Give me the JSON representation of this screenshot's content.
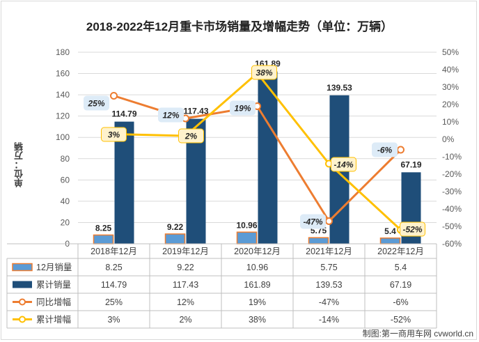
{
  "title": "2018-2022年12月重卡市场销量及增幅走势（单位：万辆）",
  "y_axis_label": "单位：万辆",
  "credit": "制图:第一商用车网 cvworld.cn",
  "chart_data": {
    "type": "bar",
    "categories": [
      "2018年12月",
      "2019年12月",
      "2020年12月",
      "2021年12月",
      "2022年12月"
    ],
    "series": [
      {
        "name": "12月销量",
        "type": "bar",
        "axis": "left",
        "values": [
          8.25,
          9.22,
          10.96,
          5.75,
          5.4
        ],
        "color": "#5b9bd5",
        "border": "#ed7d31"
      },
      {
        "name": "累计销量",
        "type": "bar",
        "axis": "left",
        "values": [
          114.79,
          117.43,
          161.89,
          139.53,
          67.19
        ],
        "color": "#1f4e79"
      },
      {
        "name": "同比增幅",
        "type": "line",
        "axis": "right",
        "values": [
          25,
          12,
          19,
          -47,
          -6
        ],
        "color": "#ed7d31"
      },
      {
        "name": "累计增幅",
        "type": "line",
        "axis": "right",
        "values": [
          3,
          2,
          38,
          -14,
          -52
        ],
        "color": "#ffc000"
      }
    ],
    "left_axis": {
      "min": 0,
      "max": 180,
      "step": 20
    },
    "right_axis": {
      "min": -60,
      "max": 50,
      "step": 10,
      "format": "percent"
    },
    "data_labels": {
      "bar": [
        "8.25",
        "9.22",
        "10.96",
        "5.75",
        "5.4"
      ],
      "bar_total": [
        "114.79",
        "117.43",
        "161.89",
        "139.53",
        "67.19"
      ]
    },
    "gridlines": true,
    "legend": "data-table-bottom"
  },
  "table": {
    "rows": [
      {
        "label": "12月销量",
        "cells": [
          "8.25",
          "9.22",
          "10.96",
          "5.75",
          "5.4"
        ]
      },
      {
        "label": "累计销量",
        "cells": [
          "114.79",
          "117.43",
          "161.89",
          "139.53",
          "67.19"
        ]
      },
      {
        "label": "同比增幅",
        "cells": [
          "25%",
          "12%",
          "19%",
          "-47%",
          "-6%"
        ]
      },
      {
        "label": "累计增幅",
        "cells": [
          "3%",
          "2%",
          "38%",
          "-14%",
          "-52%"
        ]
      }
    ]
  }
}
